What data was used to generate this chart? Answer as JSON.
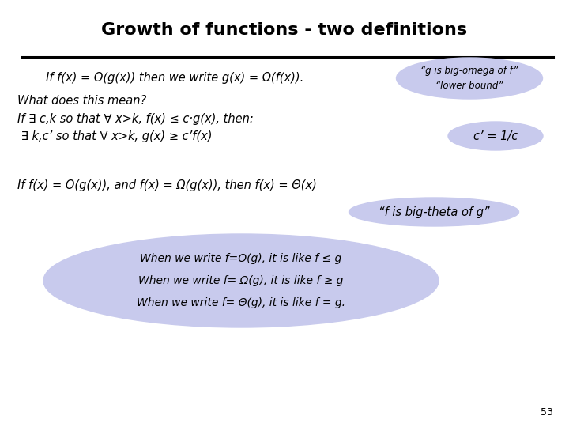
{
  "title": "Growth of functions - two definitions",
  "title_fontsize": 16,
  "bg_color": "#ffffff",
  "slide_number": "53",
  "line1": "If f(x) = O(g(x)) then we write g(x) = Ω(f(x)).",
  "bubble1_line1": "“g is big-omega of f”",
  "bubble1_line2": "“lower bound”",
  "line2": "What does this mean?",
  "line3": "If ∃ c,k so that ∀ x>k, f(x) ≤ c·g(x), then:",
  "line4": " ∃ k,c’ so that ∀ x>k, g(x) ≥ c’f(x)",
  "bubble2": "c’ = 1/c",
  "line5": "If f(x) = O(g(x)), and f(x) = Ω(g(x)), then f(x) = Θ(x)",
  "bubble3": "“f is big-theta of g”",
  "ellipse_line1": "When we write f=O(g), it is like f ≤ g",
  "ellipse_line2": "When we write f= Ω(g), it is like f ≥ g",
  "ellipse_line3": "When we write f= Θ(g), it is like f = g.",
  "bubble_color": "#c8caed",
  "text_color": "#000000",
  "separator_color": "#000000"
}
